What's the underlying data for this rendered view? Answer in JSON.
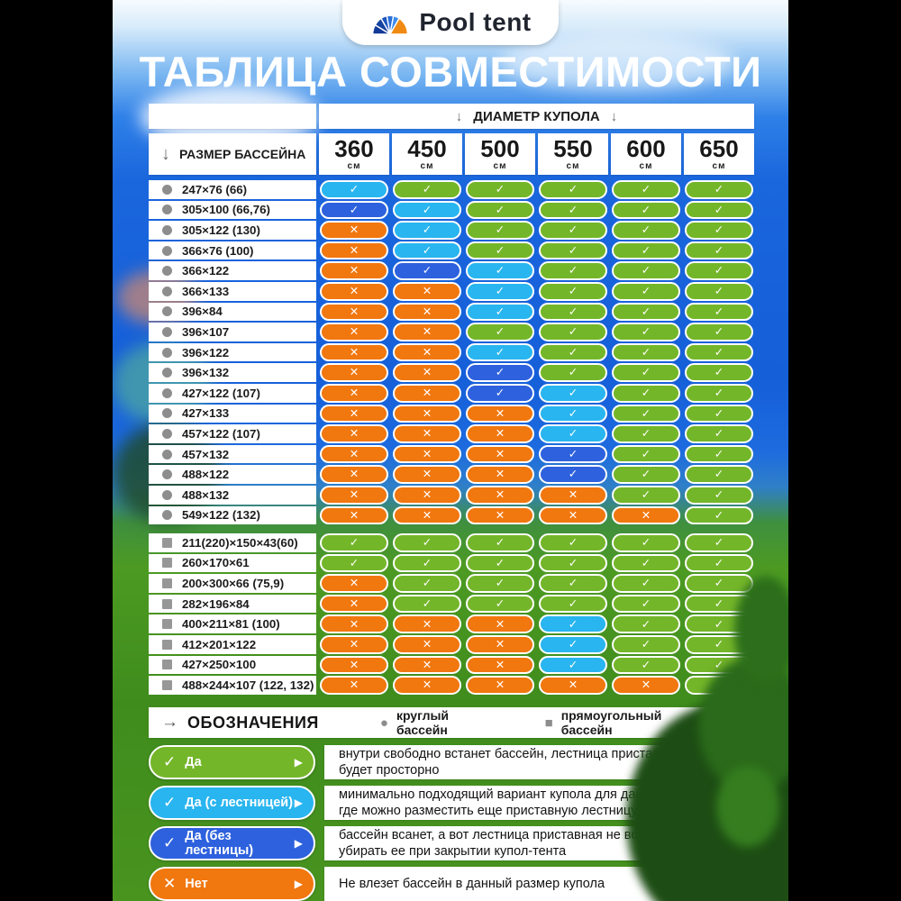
{
  "logo": {
    "text": "Pool tent"
  },
  "title": "ТАБЛИЦА СОВМЕСТИМОСТИ",
  "icons": {
    "check": "✓",
    "cross": "✕",
    "triangle_right": "▶",
    "arrow_down": "↓",
    "arrow_right": "→",
    "circle_bullet": "●",
    "square_bullet": "■"
  },
  "table": {
    "col_group_header": "ДИАМЕТР КУПОЛА",
    "row_header": "РАЗМЕР БАССЕЙНА",
    "columns": [
      {
        "size": "360",
        "unit": "см"
      },
      {
        "size": "450",
        "unit": "см"
      },
      {
        "size": "500",
        "unit": "см"
      },
      {
        "size": "550",
        "unit": "см"
      },
      {
        "size": "600",
        "unit": "см"
      },
      {
        "size": "650",
        "unit": "см"
      }
    ],
    "status_colors": {
      "yes": "#74b629",
      "yes_ladder": "#29b5ef",
      "yes_no_ladder": "#2e61dd",
      "no": "#f1770f"
    },
    "sections": [
      {
        "icon": "circle",
        "rows": [
          {
            "label": "247×76 (66)",
            "cells": [
              "yes_ladder",
              "yes",
              "yes",
              "yes",
              "yes",
              "yes"
            ]
          },
          {
            "label": "305×100 (66,76)",
            "cells": [
              "yes_no_ladder",
              "yes_ladder",
              "yes",
              "yes",
              "yes",
              "yes"
            ]
          },
          {
            "label": "305×122 (130)",
            "cells": [
              "no",
              "yes_ladder",
              "yes",
              "yes",
              "yes",
              "yes"
            ]
          },
          {
            "label": "366×76 (100)",
            "cells": [
              "no",
              "yes_ladder",
              "yes",
              "yes",
              "yes",
              "yes"
            ]
          },
          {
            "label": "366×122",
            "cells": [
              "no",
              "yes_no_ladder",
              "yes_ladder",
              "yes",
              "yes",
              "yes"
            ]
          },
          {
            "label": "366×133",
            "cells": [
              "no",
              "no",
              "yes_ladder",
              "yes",
              "yes",
              "yes"
            ]
          },
          {
            "label": "396×84",
            "cells": [
              "no",
              "no",
              "yes_ladder",
              "yes",
              "yes",
              "yes"
            ]
          },
          {
            "label": "396×107",
            "cells": [
              "no",
              "no",
              "yes",
              "yes",
              "yes",
              "yes"
            ]
          },
          {
            "label": "396×122",
            "cells": [
              "no",
              "no",
              "yes_ladder",
              "yes",
              "yes",
              "yes"
            ]
          },
          {
            "label": "396×132",
            "cells": [
              "no",
              "no",
              "yes_no_ladder",
              "yes",
              "yes",
              "yes"
            ]
          },
          {
            "label": "427×122 (107)",
            "cells": [
              "no",
              "no",
              "yes_no_ladder",
              "yes_ladder",
              "yes",
              "yes"
            ]
          },
          {
            "label": "427×133",
            "cells": [
              "no",
              "no",
              "no",
              "yes_ladder",
              "yes",
              "yes"
            ]
          },
          {
            "label": "457×122 (107)",
            "cells": [
              "no",
              "no",
              "no",
              "yes_ladder",
              "yes",
              "yes"
            ]
          },
          {
            "label": "457×132",
            "cells": [
              "no",
              "no",
              "no",
              "yes_no_ladder",
              "yes",
              "yes"
            ]
          },
          {
            "label": "488×122",
            "cells": [
              "no",
              "no",
              "no",
              "yes_no_ladder",
              "yes",
              "yes"
            ]
          },
          {
            "label": "488×132",
            "cells": [
              "no",
              "no",
              "no",
              "no",
              "yes",
              "yes"
            ]
          },
          {
            "label": "549×122 (132)",
            "cells": [
              "no",
              "no",
              "no",
              "no",
              "no",
              "yes"
            ]
          }
        ]
      },
      {
        "icon": "square",
        "rows": [
          {
            "label": "211(220)×150×43(60)",
            "cells": [
              "yes",
              "yes",
              "yes",
              "yes",
              "yes",
              "yes"
            ]
          },
          {
            "label": "260×170×61",
            "cells": [
              "yes",
              "yes",
              "yes",
              "yes",
              "yes",
              "yes"
            ]
          },
          {
            "label": "200×300×66 (75,9)",
            "cells": [
              "no",
              "yes",
              "yes",
              "yes",
              "yes",
              "yes"
            ]
          },
          {
            "label": "282×196×84",
            "cells": [
              "no",
              "yes",
              "yes",
              "yes",
              "yes",
              "yes"
            ]
          },
          {
            "label": "400×211×81 (100)",
            "cells": [
              "no",
              "no",
              "no",
              "yes_ladder",
              "yes",
              "yes"
            ]
          },
          {
            "label": "412×201×122",
            "cells": [
              "no",
              "no",
              "no",
              "yes_ladder",
              "yes",
              "yes"
            ]
          },
          {
            "label": "427×250×100",
            "cells": [
              "no",
              "no",
              "no",
              "yes_ladder",
              "yes",
              "yes"
            ]
          },
          {
            "label": "488×244×107 (122, 132)",
            "cells": [
              "no",
              "no",
              "no",
              "no",
              "no",
              "yes"
            ]
          }
        ]
      }
    ]
  },
  "legend": {
    "title": "ОБОЗНАЧЕНИЯ",
    "circle_label": "круглый бассейн",
    "square_label": "прямоугольный бассейн",
    "items": [
      {
        "key": "yes",
        "symbol": "check",
        "label": "Да",
        "description": "внутри свободно встанет бассейн, лестница приставная и внутри будет просторно"
      },
      {
        "key": "yes_ladder",
        "symbol": "check",
        "label": "Да (с лестницей)",
        "description": "минимально подходящий вариант купола для данного бассейна, где можно разместить еще приставную лестницу"
      },
      {
        "key": "yes_no_ladder",
        "symbol": "check",
        "label": "Да (без лестницы)",
        "description": "бассейн всанет, а вот лестница приставная не встанет, придется убирать ее при закрытии купол-тента"
      },
      {
        "key": "no",
        "symbol": "cross",
        "label": "Нет",
        "description": "Не влезет бассейн в данный размер купола"
      }
    ]
  }
}
